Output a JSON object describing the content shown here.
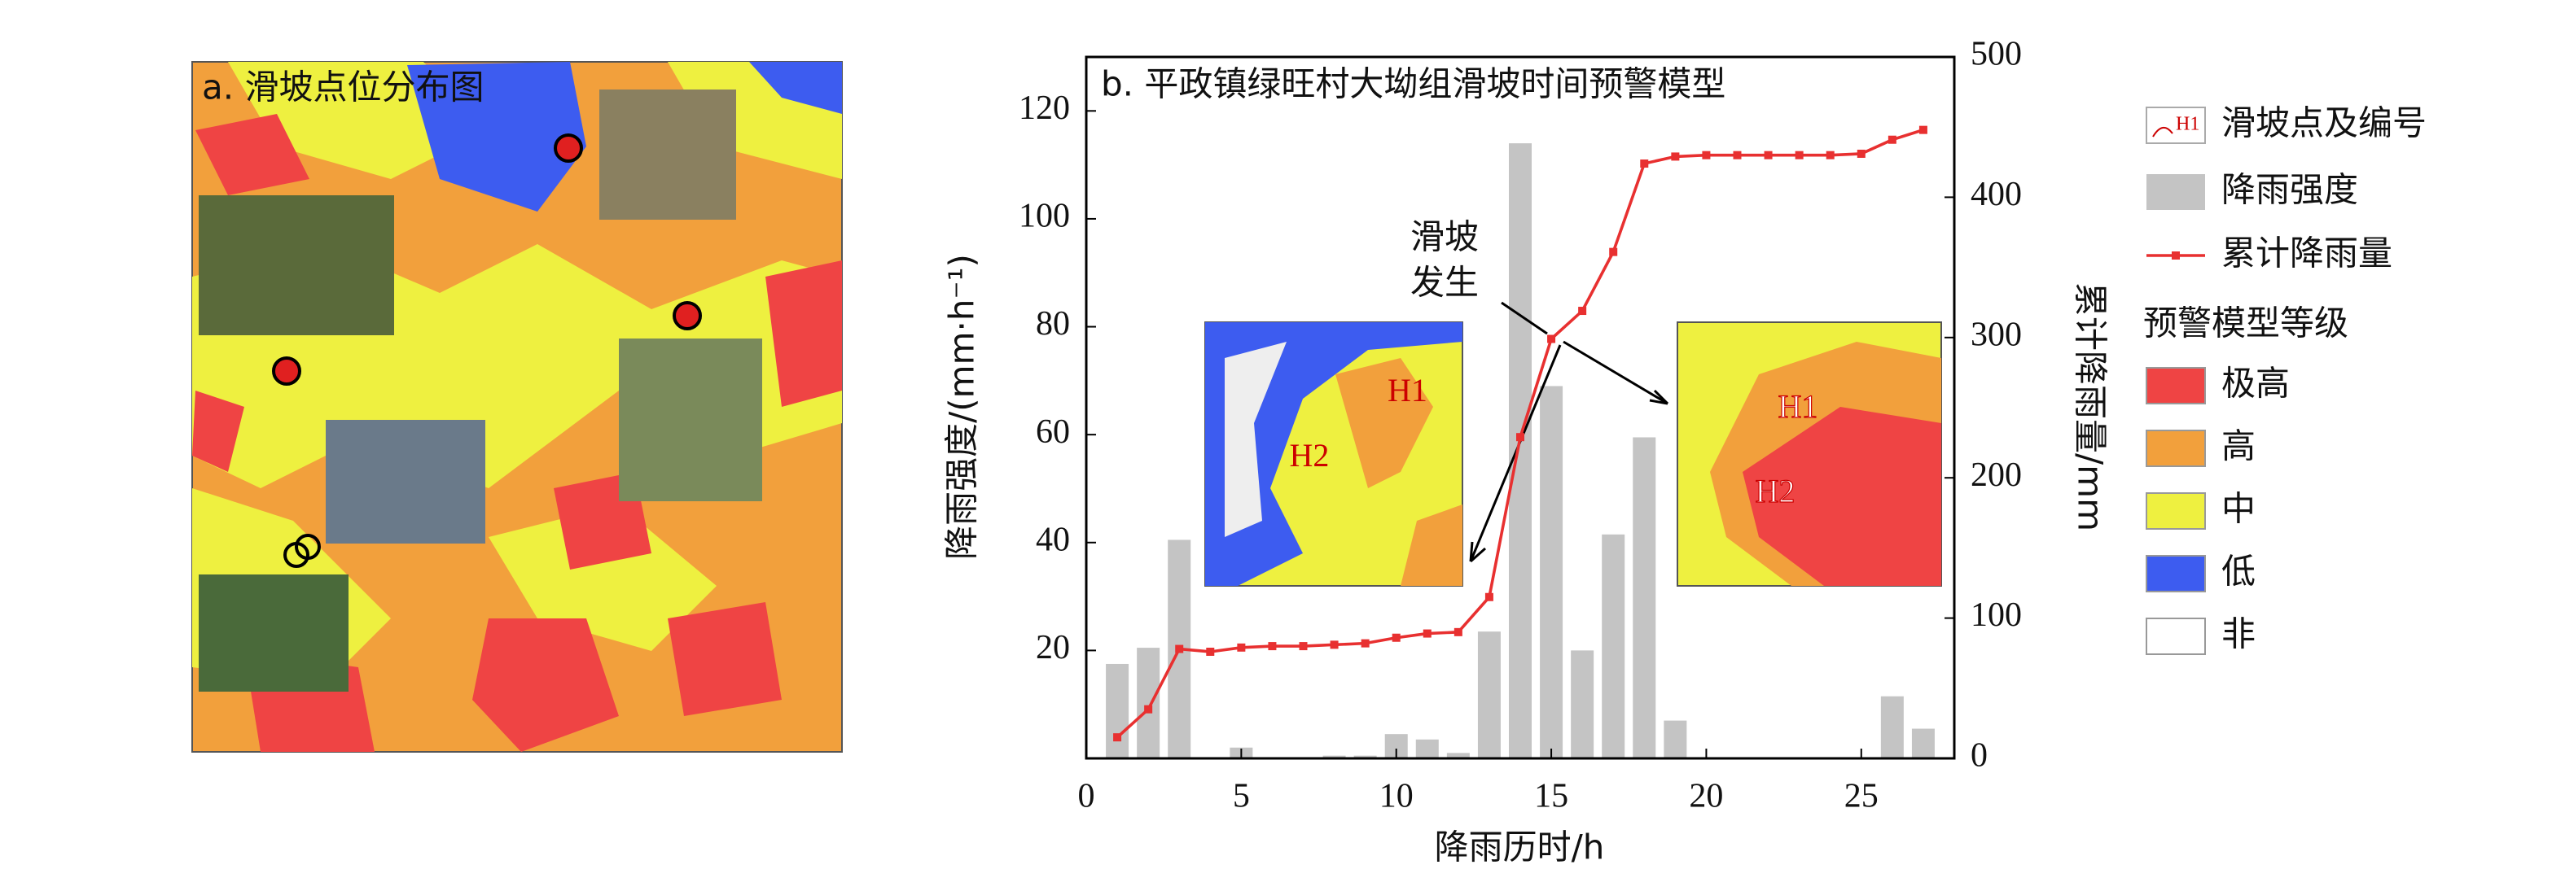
{
  "panel_a": {
    "title": "a. 滑坡点位分布图"
  },
  "chart_data": {
    "type": "bar",
    "title": "b. 平政镇绿旺村大坳组滑坡时间预警模型",
    "x_label": "降雨历时/h",
    "y_label": "降雨强度/(mm·h⁻¹)",
    "y2_label": "累计降雨量/mm",
    "x": [
      1,
      2,
      3,
      4,
      5,
      6,
      7,
      8,
      9,
      10,
      11,
      12,
      13,
      14,
      15,
      16,
      17,
      18,
      19,
      20,
      21,
      22,
      23,
      24,
      25,
      26,
      27
    ],
    "series": [
      {
        "name": "降雨强度",
        "color": "#c4c4c4",
        "values": [
          17.5,
          20.5,
          40.5,
          0,
          2,
          0,
          0,
          0.5,
          0.5,
          4.5,
          3.5,
          1,
          23.5,
          114,
          69,
          20,
          41.5,
          59.5,
          7,
          0,
          0,
          0,
          0,
          0,
          0,
          11.5,
          5.5
        ]
      },
      {
        "name": "累计降雨量",
        "color": "#e83030",
        "axis": "y2",
        "type": "line",
        "values": [
          15,
          35,
          78,
          76,
          79,
          80,
          80,
          81,
          82,
          86,
          89,
          90,
          115,
          229,
          299,
          319,
          361,
          424,
          429,
          430,
          430,
          430,
          430,
          430,
          431,
          441,
          448
        ]
      }
    ],
    "xlim": [
      0,
      28
    ],
    "xticks": [
      0,
      5,
      10,
      15,
      20,
      25
    ],
    "ylim": [
      0,
      130
    ],
    "yticks": [
      20,
      40,
      60,
      80,
      100,
      120
    ],
    "y2lim": [
      0,
      500
    ],
    "y2ticks": [
      0,
      100,
      200,
      300,
      400,
      500
    ],
    "annotation": [
      "滑坡",
      "发生"
    ],
    "inset_labels": [
      "H1",
      "H2"
    ],
    "point_legend": "滑坡点及编号",
    "level_title": "预警模型等级",
    "levels": [
      {
        "name": "极高",
        "color": "#ef4444"
      },
      {
        "name": "高",
        "color": "#f2a03c"
      },
      {
        "name": "中",
        "color": "#eef040"
      },
      {
        "name": "低",
        "color": "#3d5cf0"
      },
      {
        "name": "非",
        "color": "#ffffff"
      }
    ]
  }
}
